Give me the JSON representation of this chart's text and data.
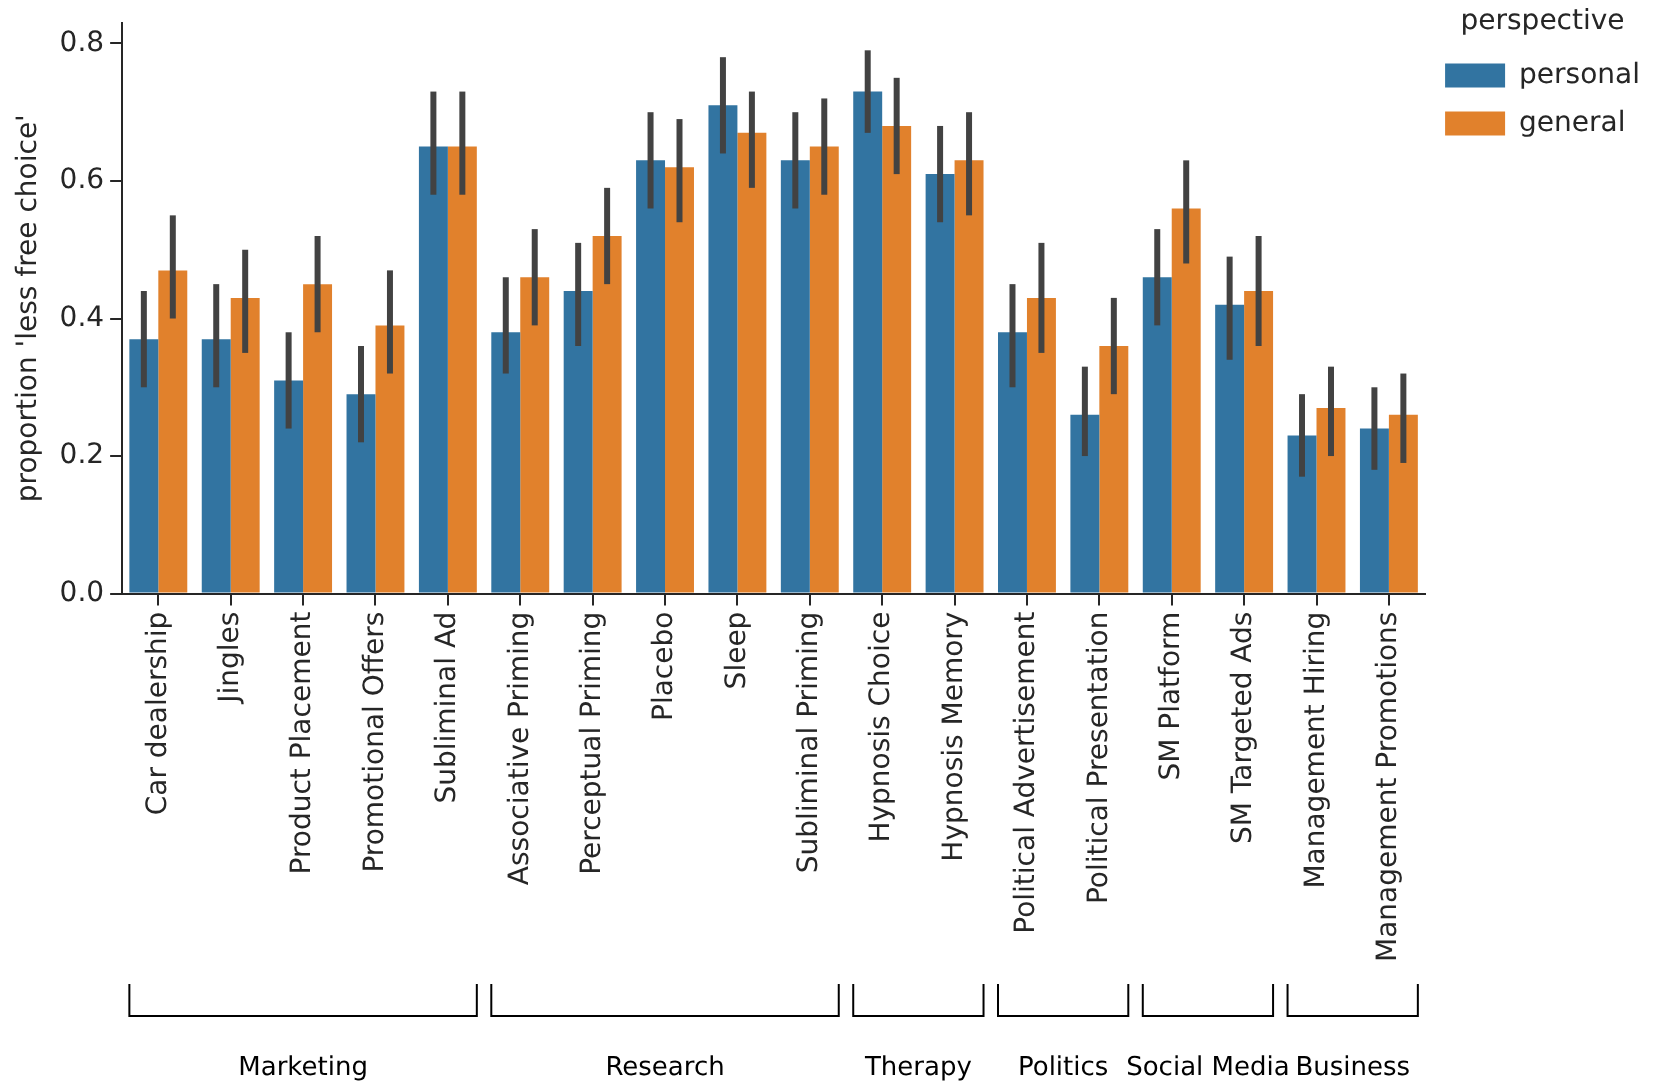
{
  "chart_data": {
    "type": "bar",
    "ylabel": "proportion 'less free choice'",
    "legend_title": "perspective",
    "categories": [
      "Car dealership",
      "Jingles",
      "Product Placement",
      "Promotional Offers",
      "Subliminal Ad",
      "Associative Priming",
      "Perceptual Priming",
      "Placebo",
      "Sleep",
      "Subliminal Priming",
      "Hypnosis Choice",
      "Hypnosis Memory",
      "Political Advertisement",
      "Political Presentation",
      "SM Platform",
      "SM Targeted Ads",
      "Management Hiring",
      "Management Promotions"
    ],
    "series": [
      {
        "name": "personal",
        "color": "#3274a1",
        "values": [
          0.37,
          0.37,
          0.31,
          0.29,
          0.65,
          0.38,
          0.44,
          0.63,
          0.71,
          0.63,
          0.73,
          0.61,
          0.38,
          0.26,
          0.46,
          0.42,
          0.23,
          0.24
        ],
        "errors": [
          [
            0.3,
            0.44
          ],
          [
            0.3,
            0.45
          ],
          [
            0.24,
            0.38
          ],
          [
            0.22,
            0.36
          ],
          [
            0.58,
            0.73
          ],
          [
            0.32,
            0.46
          ],
          [
            0.36,
            0.51
          ],
          [
            0.56,
            0.7
          ],
          [
            0.64,
            0.78
          ],
          [
            0.56,
            0.7
          ],
          [
            0.67,
            0.79
          ],
          [
            0.54,
            0.68
          ],
          [
            0.3,
            0.45
          ],
          [
            0.2,
            0.33
          ],
          [
            0.39,
            0.53
          ],
          [
            0.34,
            0.49
          ],
          [
            0.17,
            0.29
          ],
          [
            0.18,
            0.3
          ]
        ]
      },
      {
        "name": "general",
        "color": "#e1812c",
        "values": [
          0.47,
          0.43,
          0.45,
          0.39,
          0.65,
          0.46,
          0.52,
          0.62,
          0.67,
          0.65,
          0.68,
          0.63,
          0.43,
          0.36,
          0.56,
          0.44,
          0.27,
          0.26
        ],
        "errors": [
          [
            0.4,
            0.55
          ],
          [
            0.35,
            0.5
          ],
          [
            0.38,
            0.52
          ],
          [
            0.32,
            0.47
          ],
          [
            0.58,
            0.73
          ],
          [
            0.39,
            0.53
          ],
          [
            0.45,
            0.59
          ],
          [
            0.54,
            0.69
          ],
          [
            0.59,
            0.73
          ],
          [
            0.58,
            0.72
          ],
          [
            0.61,
            0.75
          ],
          [
            0.55,
            0.7
          ],
          [
            0.35,
            0.51
          ],
          [
            0.29,
            0.43
          ],
          [
            0.48,
            0.63
          ],
          [
            0.36,
            0.52
          ],
          [
            0.2,
            0.33
          ],
          [
            0.19,
            0.32
          ]
        ]
      }
    ],
    "ylim": [
      0,
      0.83
    ],
    "yticks": [
      {
        "value": 0,
        "label": "0.0"
      },
      0.2,
      0.4,
      0.6,
      0.8
    ],
    "grid": false,
    "legend": "top right",
    "annotations": [
      "Marketing",
      "Research",
      "Therapy",
      "Politics",
      "Social Media",
      "Business"
    ]
  }
}
